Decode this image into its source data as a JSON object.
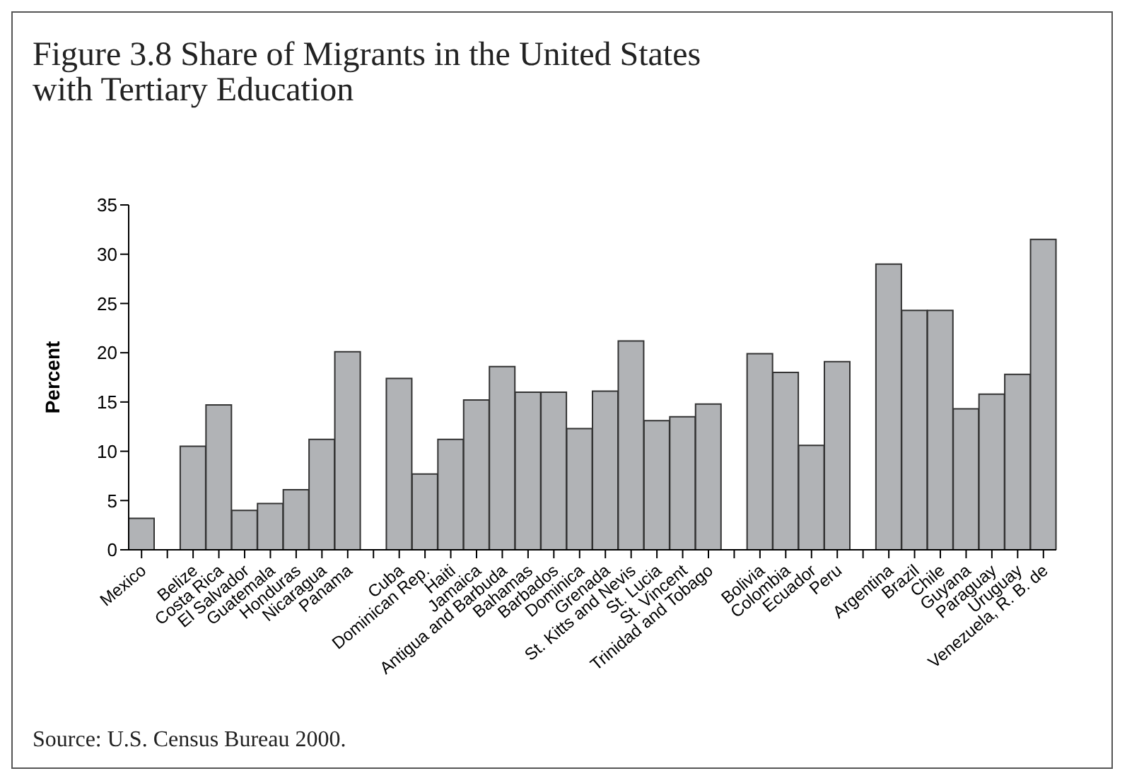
{
  "chart_data": {
    "type": "bar",
    "title": "Figure 3.8 Share of Migrants in the United States with Tertiary Education",
    "ylabel": "Percent",
    "categories": [
      "Mexico",
      null,
      "Belize",
      "Costa Rica",
      "El Salvador",
      "Guatemala",
      "Honduras",
      "Nicaragua",
      "Panama",
      null,
      "Cuba",
      "Dominican Rep.",
      "Haiti",
      "Jamaica",
      "Antigua and Barbuda",
      "Bahamas",
      "Barbados",
      "Dominica",
      "Grenada",
      "St. Kitts and Nevis",
      "St. Lucia",
      "St. Vincent",
      "Trinidad and Tobago",
      null,
      "Bolivia",
      "Colombia",
      "Ecuador",
      "Peru",
      null,
      "Argentina",
      "Brazil",
      "Chile",
      "Guyana",
      "Paraguay",
      "Uruguay",
      "Venezuela, R. B. de"
    ],
    "values": [
      3.2,
      null,
      10.5,
      14.7,
      4.0,
      4.7,
      6.1,
      11.2,
      20.1,
      null,
      17.4,
      7.7,
      11.2,
      15.2,
      18.6,
      16.0,
      16.0,
      12.3,
      16.1,
      21.2,
      13.1,
      13.5,
      14.8,
      null,
      19.9,
      18.0,
      10.6,
      19.1,
      null,
      29.0,
      24.3,
      24.3,
      14.3,
      15.8,
      17.8,
      31.5
    ],
    "color": "#b1b3b6",
    "ylim": [
      0,
      35
    ],
    "yticks": [
      0,
      5,
      10,
      15,
      20,
      25,
      30,
      35
    ],
    "grid": false,
    "legend": false,
    "annotations": [
      "Source: U.S. Census Bureau 2000."
    ]
  }
}
